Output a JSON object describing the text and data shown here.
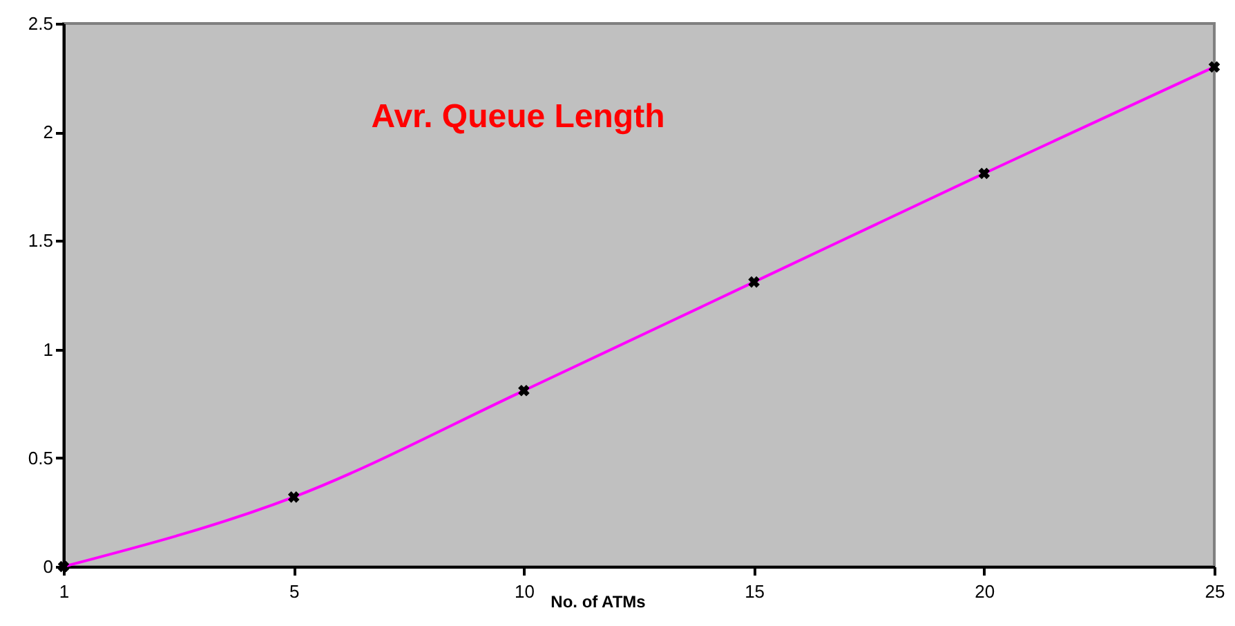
{
  "chart_data": {
    "type": "line",
    "title": "Avr. Queue Length",
    "xlabel": "No. of ATMs",
    "categories": [
      "1",
      "5",
      "10",
      "15",
      "20",
      "25"
    ],
    "series": [
      {
        "color": "#ff00ff",
        "values": [
          0,
          0.32,
          0.81,
          1.31,
          1.81,
          2.3
        ]
      }
    ],
    "ylim": [
      0,
      2.5
    ],
    "yticks": [
      0,
      0.5,
      1,
      1.5,
      2,
      2.5
    ],
    "marker": "cross",
    "line_style": "solid",
    "grid": false
  }
}
